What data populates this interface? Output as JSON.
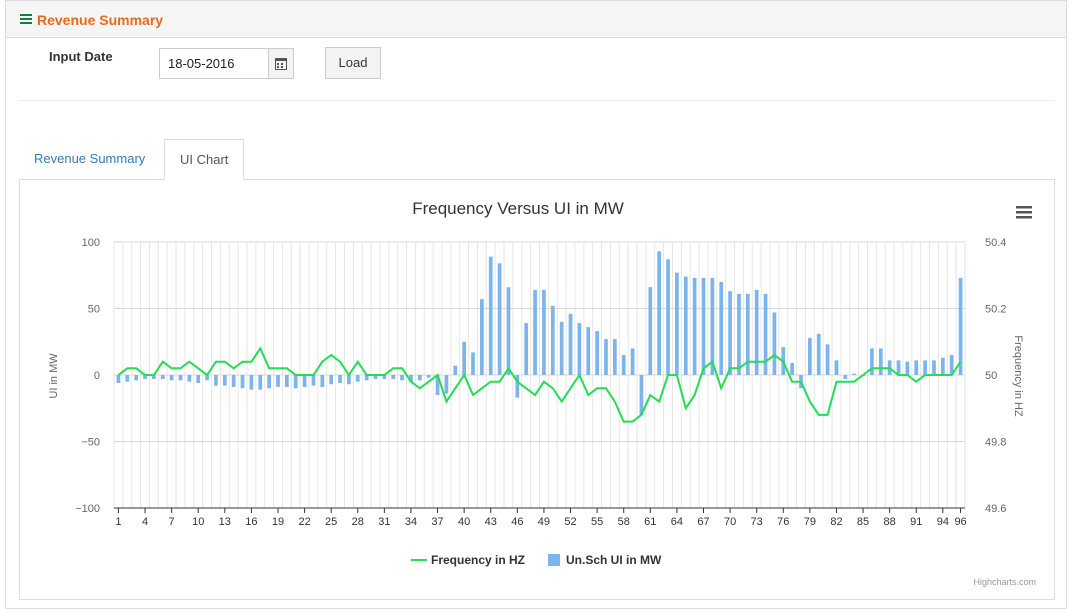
{
  "panel": {
    "title": "Revenue Summary"
  },
  "form": {
    "date_label": "Input Date",
    "date_value": "18-05-2016",
    "load_label": "Load"
  },
  "tabs": [
    {
      "label": "Revenue Summary"
    },
    {
      "label": "UI Chart"
    }
  ],
  "chart_data": {
    "type": "bar",
    "title": "Frequency Versus UI in MW",
    "credits": "Highcharts.com",
    "x": [
      1,
      2,
      3,
      4,
      5,
      6,
      7,
      8,
      9,
      10,
      11,
      12,
      13,
      14,
      15,
      16,
      17,
      18,
      19,
      20,
      21,
      22,
      23,
      24,
      25,
      26,
      27,
      28,
      29,
      30,
      31,
      32,
      33,
      34,
      35,
      36,
      37,
      38,
      39,
      40,
      41,
      42,
      43,
      44,
      45,
      46,
      47,
      48,
      49,
      50,
      51,
      52,
      53,
      54,
      55,
      56,
      57,
      58,
      59,
      60,
      61,
      62,
      63,
      64,
      65,
      66,
      67,
      68,
      69,
      70,
      71,
      72,
      73,
      74,
      75,
      76,
      77,
      78,
      79,
      80,
      81,
      82,
      83,
      84,
      85,
      86,
      87,
      88,
      89,
      90,
      91,
      92,
      93,
      94,
      95,
      96
    ],
    "xticks": [
      1,
      4,
      7,
      10,
      13,
      16,
      19,
      22,
      25,
      28,
      31,
      34,
      37,
      40,
      43,
      46,
      49,
      52,
      55,
      58,
      61,
      64,
      67,
      70,
      73,
      76,
      79,
      82,
      85,
      88,
      91,
      94,
      96
    ],
    "left_axis": {
      "label": "UI in MW",
      "min": -100,
      "max": 100,
      "ticks": [
        -100,
        -50,
        0,
        50,
        100
      ]
    },
    "right_axis": {
      "label": "Frequency in HZ",
      "min": 49.6,
      "max": 50.4,
      "ticks": [
        49.6,
        49.8,
        50,
        50.2,
        50.4
      ],
      "tick_labels": [
        "49.6",
        "49.8",
        "50",
        "50.2",
        "50.4"
      ]
    },
    "legend_position": "bottom-center",
    "series": [
      {
        "name": "Frequency in HZ",
        "type": "line",
        "axis": "right",
        "color": "#22dd55",
        "values": [
          50.0,
          50.02,
          50.02,
          50.0,
          50.0,
          50.04,
          50.02,
          50.02,
          50.04,
          50.02,
          50.0,
          50.04,
          50.04,
          50.02,
          50.04,
          50.04,
          50.08,
          50.02,
          50.02,
          50.02,
          50.0,
          50.0,
          50.0,
          50.04,
          50.06,
          50.04,
          50.0,
          50.04,
          50.0,
          50.0,
          50.0,
          50.02,
          50.02,
          49.98,
          49.96,
          49.98,
          50.0,
          49.92,
          49.96,
          50.0,
          49.94,
          49.96,
          49.98,
          49.98,
          50.02,
          49.98,
          49.96,
          49.94,
          49.98,
          49.96,
          49.92,
          49.96,
          50.0,
          49.94,
          49.96,
          49.96,
          49.92,
          49.86,
          49.86,
          49.88,
          49.94,
          49.92,
          50.0,
          50.0,
          49.9,
          49.94,
          50.02,
          50.04,
          49.96,
          50.02,
          50.02,
          50.04,
          50.04,
          50.04,
          50.06,
          50.04,
          49.98,
          49.98,
          49.92,
          49.88,
          49.88,
          49.98,
          49.98,
          49.98,
          50.0,
          50.02,
          50.02,
          50.02,
          50.0,
          50.0,
          49.98,
          50.0,
          50.0,
          50.0,
          50.0,
          50.04
        ]
      },
      {
        "name": "Un.Sch UI in MW",
        "type": "column",
        "axis": "left",
        "color": "#7cb5ec",
        "values": [
          -6,
          -5,
          -4,
          -3,
          -3,
          -3,
          -4,
          -4,
          -5,
          -6,
          -4,
          -8,
          -8,
          -9,
          -10,
          -11,
          -11,
          -10,
          -9,
          -9,
          -10,
          -9,
          -8,
          -9,
          -7,
          -6,
          -7,
          -5,
          -4,
          -3,
          -3,
          -3,
          -4,
          -5,
          -4,
          -2,
          -15,
          -14,
          7,
          25,
          17,
          57,
          89,
          84,
          66,
          -17,
          39,
          64,
          64,
          52,
          40,
          46,
          39,
          36,
          33,
          27,
          27,
          15,
          20,
          -30,
          66,
          93,
          87,
          77,
          74,
          73,
          73,
          73,
          70,
          63,
          61,
          61,
          64,
          61,
          47,
          21,
          9,
          -10,
          28,
          31,
          23,
          11,
          -3,
          1,
          0,
          20,
          20,
          11,
          11,
          10,
          11,
          11,
          11,
          13,
          15,
          73
        ]
      }
    ]
  }
}
